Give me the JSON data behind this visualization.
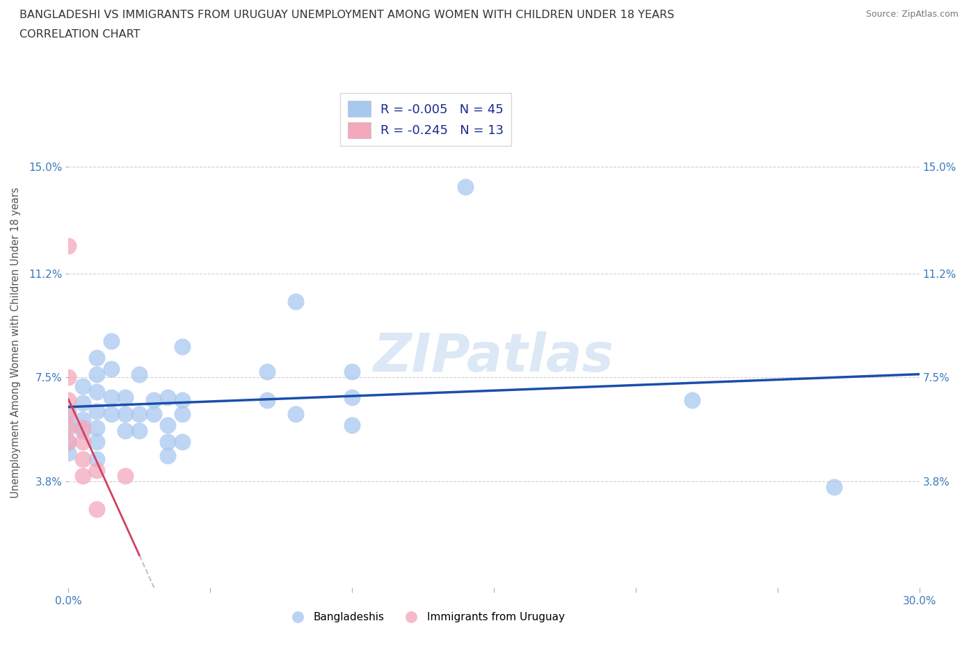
{
  "title_line1": "BANGLADESHI VS IMMIGRANTS FROM URUGUAY UNEMPLOYMENT AMONG WOMEN WITH CHILDREN UNDER 18 YEARS",
  "title_line2": "CORRELATION CHART",
  "source": "Source: ZipAtlas.com",
  "ylabel": "Unemployment Among Women with Children Under 18 years",
  "xlim": [
    0.0,
    0.3
  ],
  "ylim": [
    0.0,
    0.175
  ],
  "xticks": [
    0.0,
    0.05,
    0.1,
    0.15,
    0.2,
    0.25,
    0.3
  ],
  "xticklabels": [
    "0.0%",
    "",
    "",
    "",
    "",
    "",
    "30.0%"
  ],
  "ytick_positions": [
    0.038,
    0.075,
    0.112,
    0.15
  ],
  "ytick_labels": [
    "3.8%",
    "7.5%",
    "11.2%",
    "15.0%"
  ],
  "R_blue": -0.005,
  "N_blue": 45,
  "R_pink": -0.245,
  "N_pink": 13,
  "blue_color": "#a8c8f0",
  "pink_color": "#f4a8bc",
  "trend_blue_color": "#1a4faa",
  "trend_pink_color": "#d04060",
  "trend_pink_dash_color": "#c0c0d0",
  "watermark_color": "#dce8f5",
  "grid_color": "#d0d0d0",
  "background_color": "#ffffff",
  "blue_points": [
    [
      0.0,
      0.063
    ],
    [
      0.0,
      0.058
    ],
    [
      0.0,
      0.052
    ],
    [
      0.0,
      0.048
    ],
    [
      0.005,
      0.072
    ],
    [
      0.005,
      0.066
    ],
    [
      0.005,
      0.06
    ],
    [
      0.005,
      0.056
    ],
    [
      0.01,
      0.082
    ],
    [
      0.01,
      0.076
    ],
    [
      0.01,
      0.07
    ],
    [
      0.01,
      0.063
    ],
    [
      0.01,
      0.057
    ],
    [
      0.01,
      0.052
    ],
    [
      0.01,
      0.046
    ],
    [
      0.015,
      0.088
    ],
    [
      0.015,
      0.078
    ],
    [
      0.015,
      0.068
    ],
    [
      0.015,
      0.062
    ],
    [
      0.02,
      0.068
    ],
    [
      0.02,
      0.062
    ],
    [
      0.02,
      0.056
    ],
    [
      0.025,
      0.076
    ],
    [
      0.025,
      0.062
    ],
    [
      0.025,
      0.056
    ],
    [
      0.03,
      0.067
    ],
    [
      0.03,
      0.062
    ],
    [
      0.035,
      0.068
    ],
    [
      0.035,
      0.058
    ],
    [
      0.035,
      0.052
    ],
    [
      0.035,
      0.047
    ],
    [
      0.04,
      0.086
    ],
    [
      0.04,
      0.067
    ],
    [
      0.04,
      0.062
    ],
    [
      0.04,
      0.052
    ],
    [
      0.07,
      0.077
    ],
    [
      0.07,
      0.067
    ],
    [
      0.08,
      0.102
    ],
    [
      0.08,
      0.062
    ],
    [
      0.1,
      0.077
    ],
    [
      0.1,
      0.068
    ],
    [
      0.1,
      0.058
    ],
    [
      0.14,
      0.143
    ],
    [
      0.22,
      0.067
    ],
    [
      0.27,
      0.036
    ]
  ],
  "pink_points": [
    [
      0.0,
      0.122
    ],
    [
      0.0,
      0.075
    ],
    [
      0.0,
      0.067
    ],
    [
      0.0,
      0.062
    ],
    [
      0.0,
      0.057
    ],
    [
      0.0,
      0.052
    ],
    [
      0.005,
      0.057
    ],
    [
      0.005,
      0.052
    ],
    [
      0.005,
      0.046
    ],
    [
      0.005,
      0.04
    ],
    [
      0.01,
      0.042
    ],
    [
      0.01,
      0.028
    ],
    [
      0.02,
      0.04
    ]
  ],
  "legend_label_blue": "R = -0.005   N = 45",
  "legend_label_pink": "R = -0.245   N = 13",
  "bottom_legend_blue": "Bangladeshis",
  "bottom_legend_pink": "Immigrants from Uruguay"
}
